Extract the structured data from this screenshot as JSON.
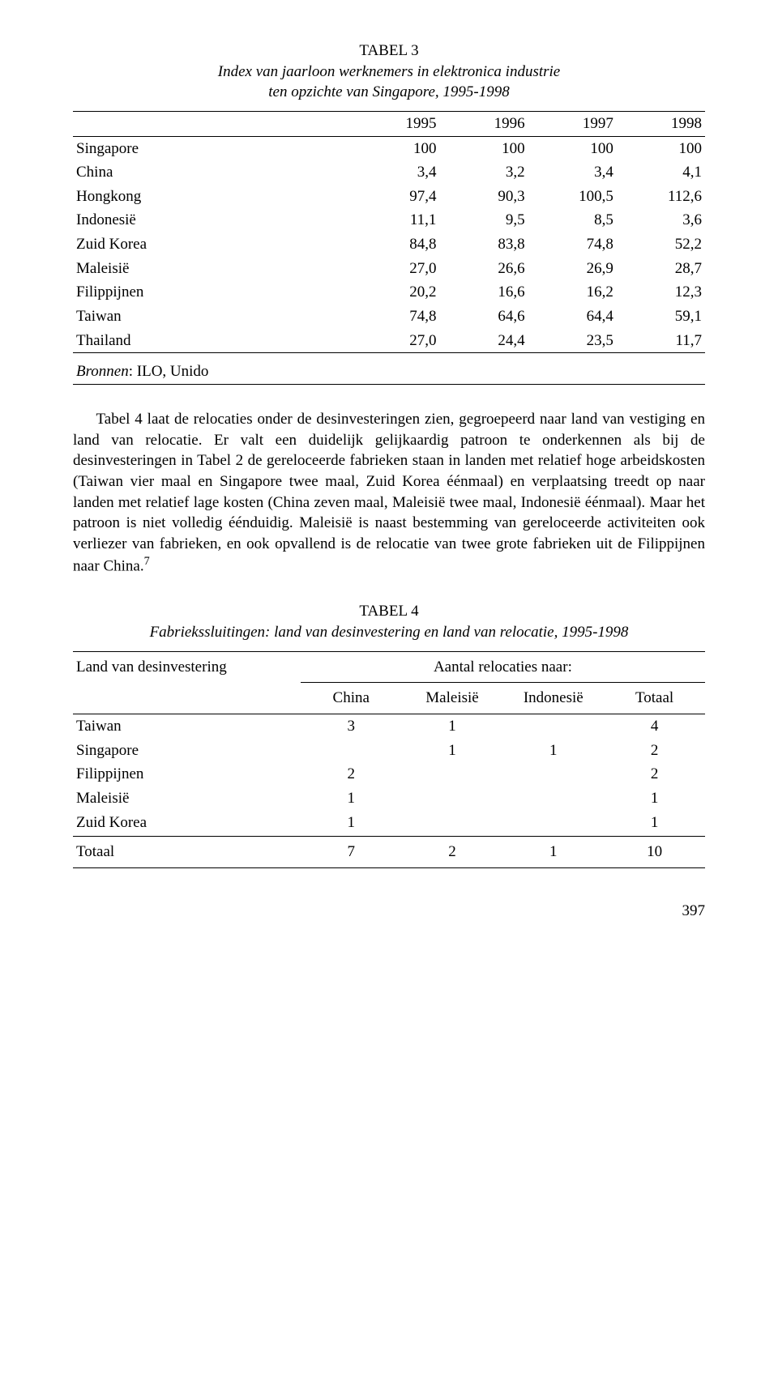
{
  "table3": {
    "number": "TABEL 3",
    "subtitle_line1": "Index van jaarloon werknemers in elektronica industrie",
    "subtitle_line2": "ten opzichte van Singapore, 1995-1998",
    "years": [
      "1995",
      "1996",
      "1997",
      "1998"
    ],
    "rows": [
      {
        "label": "Singapore",
        "v": [
          "100",
          "100",
          "100",
          "100"
        ]
      },
      {
        "label": "China",
        "v": [
          "3,4",
          "3,2",
          "3,4",
          "4,1"
        ]
      },
      {
        "label": "Hongkong",
        "v": [
          "97,4",
          "90,3",
          "100,5",
          "112,6"
        ]
      },
      {
        "label": "Indonesië",
        "v": [
          "11,1",
          "9,5",
          "8,5",
          "3,6"
        ]
      },
      {
        "label": "Zuid Korea",
        "v": [
          "84,8",
          "83,8",
          "74,8",
          "52,2"
        ]
      },
      {
        "label": "Maleisië",
        "v": [
          "27,0",
          "26,6",
          "26,9",
          "28,7"
        ]
      },
      {
        "label": "Filippijnen",
        "v": [
          "20,2",
          "16,6",
          "16,2",
          "12,3"
        ]
      },
      {
        "label": "Taiwan",
        "v": [
          "74,8",
          "64,6",
          "64,4",
          "59,1"
        ]
      },
      {
        "label": "Thailand",
        "v": [
          "27,0",
          "24,4",
          "23,5",
          "11,7"
        ]
      }
    ],
    "source_label": "Bronnen",
    "source_value": ": ILO, Unido"
  },
  "paragraph": {
    "text": "Tabel 4 laat de relocaties onder de desinvesteringen zien, gegroepeerd naar land van vestiging en land van relocatie. Er valt een duidelijk gelijkaardig patroon te onderkennen als bij de desinvesteringen in Tabel 2 de gereloceerde fabrieken staan in landen met relatief hoge arbeidskosten (Taiwan vier maal en Singapore twee maal, Zuid Korea éénmaal) en verplaatsing treedt op naar landen met relatief lage kosten (China zeven maal, Maleisië twee maal, Indonesië éénmaal). Maar het patroon is niet volledig éénduidig. Maleisië is naast bestemming van gereloceerde activiteiten ook verliezer van fabrieken, en ook opvallend is de relocatie van twee grote fabrieken uit de Filippijnen naar China.",
    "footnote": "7"
  },
  "table4": {
    "number": "TABEL 4",
    "subtitle": "Fabriekssluitingen: land van desinvestering en land van relocatie, 1995-1998",
    "header_left": "Land van desinvestering",
    "header_right": "Aantal relocaties naar:",
    "cols": [
      "China",
      "Maleisië",
      "Indonesië",
      "Totaal"
    ],
    "rows": [
      {
        "label": "Taiwan",
        "v": [
          "3",
          "1",
          "",
          "4"
        ]
      },
      {
        "label": "Singapore",
        "v": [
          "",
          "1",
          "1",
          "2"
        ]
      },
      {
        "label": "Filippijnen",
        "v": [
          "2",
          "",
          "",
          "2"
        ]
      },
      {
        "label": "Maleisië",
        "v": [
          "1",
          "",
          "",
          "1"
        ]
      },
      {
        "label": "Zuid Korea",
        "v": [
          "1",
          "",
          "",
          "1"
        ]
      }
    ],
    "total_label": "Totaal",
    "total": [
      "7",
      "2",
      "1",
      "10"
    ]
  },
  "pagenum": "397"
}
